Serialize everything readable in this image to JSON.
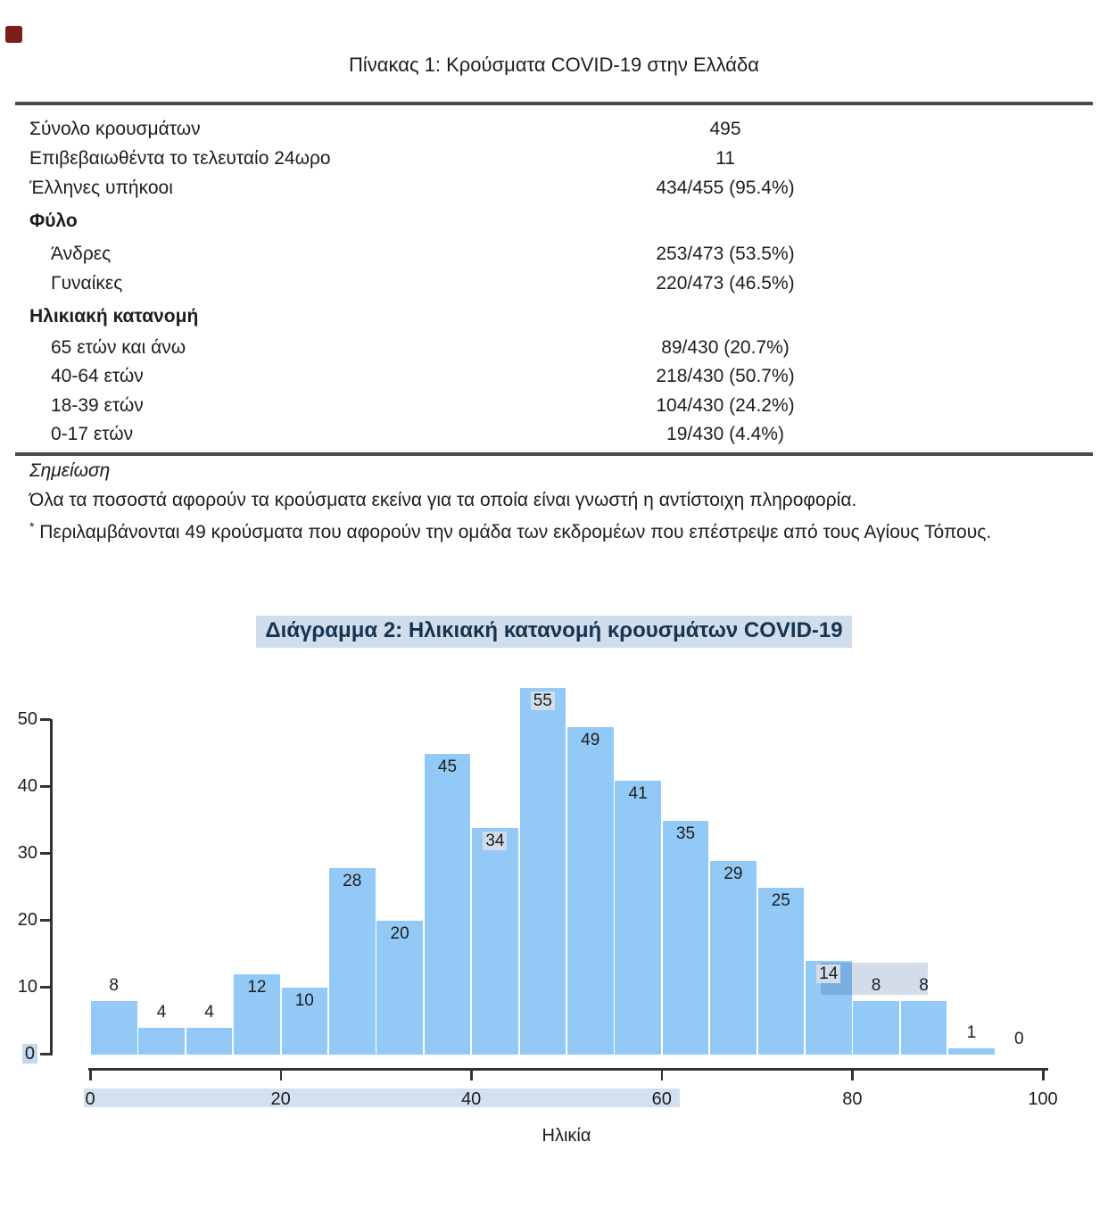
{
  "marker": {
    "color": "#7a1e1e"
  },
  "table": {
    "title": "Πίνακας 1: Κρούσματα COVID-19 στην Ελλάδα",
    "rows": [
      {
        "label": "Σύνολο κρουσμάτων",
        "value": "495",
        "bold": false,
        "indent": false
      },
      {
        "label": "Επιβεβαιωθέντα το τελευταίο 24ωρο",
        "value": "11",
        "bold": false,
        "indent": false
      },
      {
        "label": "Έλληνες υπήκοοι",
        "value": "434/455 (95.4%)",
        "bold": false,
        "indent": false
      },
      {
        "label": "Φύλο",
        "value": "",
        "bold": true,
        "indent": false
      },
      {
        "label": "Άνδρες",
        "value": "253/473 (53.5%)",
        "bold": false,
        "indent": true
      },
      {
        "label": "Γυναίκες",
        "value": "220/473 (46.5%)",
        "bold": false,
        "indent": true
      },
      {
        "label": "Ηλικιακή κατανομή",
        "value": "",
        "bold": true,
        "indent": false
      },
      {
        "label": "65 ετών και άνω",
        "value": "89/430 (20.7%)",
        "bold": false,
        "indent": true
      },
      {
        "label": "40-64 ετών",
        "value": "218/430 (50.7%)",
        "bold": false,
        "indent": true
      },
      {
        "label": "18-39 ετών",
        "value": "104/430 (24.2%)",
        "bold": false,
        "indent": true
      },
      {
        "label": "0-17 ετών",
        "value": "19/430 (4.4%)",
        "bold": false,
        "indent": true
      }
    ],
    "note_heading": "Σημείωση",
    "note_line1": "Όλα τα ποσοστά αφορούν τα κρούσματα εκείνα για τα οποία είναι γνωστή η αντίστοιχη πληροφορία.",
    "note_line2_star": "*",
    "note_line2": "Περιλαμβάνονται 49 κρούσματα που αφορούν την ομάδα των εκδρομέων που επέστρεψε από τους Αγίους Τόπους."
  },
  "chart": {
    "title": "Διάγραμμα 2: Ηλικιακή κατανομή κρουσμάτων COVID-19",
    "x_axis_label": "Ηλικία"
  },
  "chart_data": {
    "type": "bar",
    "title": "Διάγραμμα 2: Ηλικιακή κατανομή κρουσμάτων COVID-19",
    "xlabel": "Ηλικία",
    "ylabel": "",
    "bins": {
      "start": 0,
      "end": 100,
      "width": 5
    },
    "values": [
      8,
      4,
      4,
      12,
      10,
      28,
      20,
      45,
      34,
      55,
      49,
      41,
      35,
      29,
      25,
      14,
      8,
      8,
      1,
      0
    ],
    "x_ticks": [
      0,
      20,
      40,
      60,
      80,
      100
    ],
    "y_ticks": [
      0,
      10,
      20,
      30,
      40,
      50
    ],
    "xlim": [
      0,
      100
    ],
    "ylim": [
      0,
      55
    ],
    "grid": false,
    "legend": "none",
    "bar_color": "#93c9f7",
    "label_inside_threshold": 10,
    "highlighted_label_indices": [
      8,
      9,
      15
    ],
    "highlighted_y_tick": 0,
    "highlighted_x_tick_range": [
      0,
      60
    ]
  }
}
